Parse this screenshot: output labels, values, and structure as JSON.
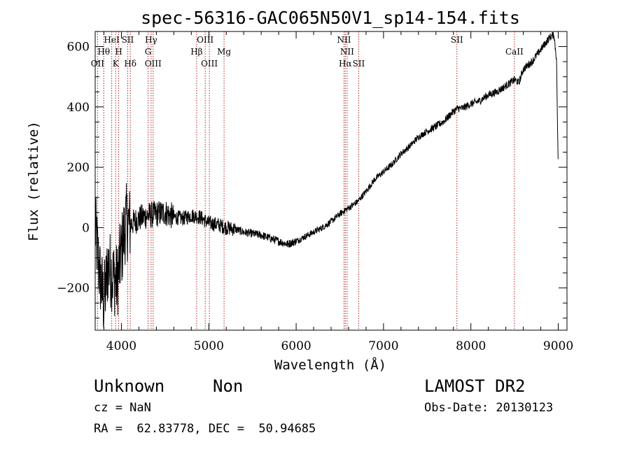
{
  "chart_data": {
    "type": "line",
    "title": "spec-56316-GAC065N50V1_sp14-154.fits",
    "xlabel": "Wavelength (Å)",
    "ylabel": "Flux (relative)",
    "xlim": [
      3700,
      9100
    ],
    "ylim": [
      -340,
      650
    ],
    "grid": false,
    "x_ticks": [
      "4000",
      "5000",
      "6000",
      "7000",
      "8000",
      "9000"
    ],
    "y_ticks": [
      "−200",
      "0",
      "200",
      "400",
      "600"
    ],
    "x_tick_values": [
      4000,
      5000,
      6000,
      7000,
      8000,
      9000
    ],
    "y_tick_values": [
      -200,
      0,
      200,
      400,
      600
    ],
    "line_color": "#000000",
    "marker_color": "#b22222",
    "series": [
      {
        "x": [
          3700,
          3750,
          3800,
          3850,
          3900,
          3950,
          4000,
          4050,
          4100,
          4200,
          4300,
          4400,
          4500,
          4600,
          4700,
          4800,
          4900,
          5000,
          5100,
          5200,
          5300,
          5400,
          5500,
          5600,
          5700,
          5800,
          5850,
          5900,
          5950,
          6000,
          6100,
          6200,
          6300,
          6400,
          6500,
          6600,
          6700,
          6800,
          6900,
          7000,
          7100,
          7200,
          7300,
          7400,
          7500,
          7600,
          7700,
          7800,
          7850,
          7900,
          8000,
          8100,
          8200,
          8300,
          8400,
          8500,
          8550,
          8600,
          8700,
          8800,
          8850,
          8900,
          8950,
          8980,
          9000
        ],
        "y": [
          0,
          -150,
          -250,
          -120,
          -160,
          -180,
          -80,
          20,
          10,
          30,
          40,
          45,
          50,
          35,
          30,
          40,
          35,
          15,
          10,
          0,
          -5,
          -15,
          -20,
          -25,
          -35,
          -45,
          -50,
          -55,
          -50,
          -45,
          -30,
          -15,
          0,
          20,
          45,
          65,
          85,
          120,
          160,
          185,
          210,
          245,
          270,
          300,
          320,
          335,
          355,
          385,
          395,
          395,
          410,
          420,
          440,
          450,
          470,
          490,
          480,
          525,
          550,
          590,
          610,
          630,
          640,
          560,
          180
        ]
      }
    ],
    "line_markers": [
      {
        "label": "OII",
        "x": 3727,
        "row": 3
      },
      {
        "label": "Hθ",
        "x": 3798,
        "row": 2
      },
      {
        "label": "HeI",
        "x": 3889,
        "row": 1
      },
      {
        "label": "K",
        "x": 3934,
        "row": 3
      },
      {
        "label": "H",
        "x": 3969,
        "row": 2
      },
      {
        "label": "SII",
        "x": 4072,
        "row": 1
      },
      {
        "label": "Hδ",
        "x": 4102,
        "row": 3
      },
      {
        "label": "Hγ",
        "x": 4340,
        "row": 1
      },
      {
        "label": "G",
        "x": 4305,
        "row": 2
      },
      {
        "label": "OIII",
        "x": 4363,
        "row": 3
      },
      {
        "label": "Hβ",
        "x": 4861,
        "row": 2
      },
      {
        "label": "OIII",
        "x": 4959,
        "row": 1
      },
      {
        "label": "OIII",
        "x": 5007,
        "row": 3
      },
      {
        "label": "Mg",
        "x": 5175,
        "row": 2
      },
      {
        "label": "NII",
        "x": 6548,
        "row": 1
      },
      {
        "label": "NII",
        "x": 6583,
        "row": 2
      },
      {
        "label": "Hα",
        "x": 6563,
        "row": 3
      },
      {
        "label": "SII",
        "x": 6716,
        "row": 3
      },
      {
        "label": "SII",
        "x": 7840,
        "row": 1
      },
      {
        "label": "CaII",
        "x": 8498,
        "row": 2
      }
    ]
  },
  "footer": {
    "object_class": "Unknown",
    "subclass": "Non",
    "cz": "cz = NaN",
    "coords": "RA =  62.83778, DEC =  50.94685",
    "survey": "LAMOST DR2",
    "obs_date": "Obs-Date: 20130123"
  }
}
